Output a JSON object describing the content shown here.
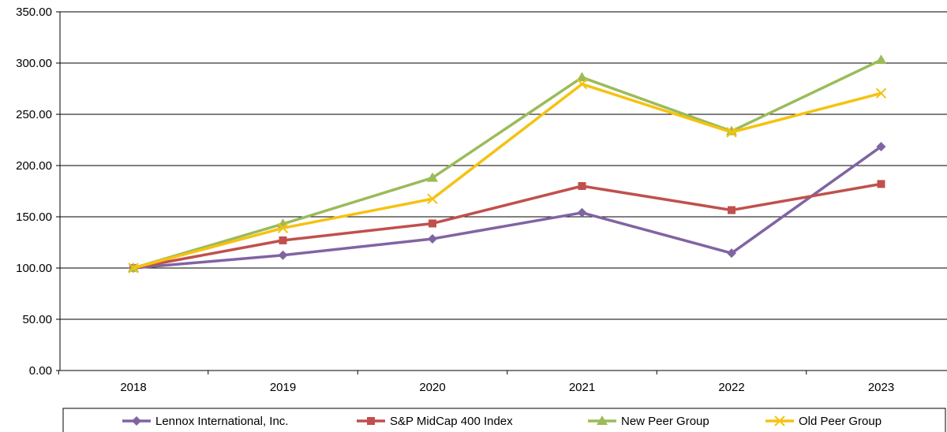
{
  "chart_data": {
    "type": "line",
    "title": "",
    "xlabel": "",
    "ylabel": "",
    "categories": [
      "2018",
      "2019",
      "2020",
      "2021",
      "2022",
      "2023"
    ],
    "ylim": [
      0,
      350
    ],
    "yticks": [
      "0.00",
      "50.00",
      "100.00",
      "150.00",
      "200.00",
      "250.00",
      "300.00",
      "350.00"
    ],
    "grid": true,
    "legend_position": "bottom",
    "series": [
      {
        "name": "Lennox International, Inc.",
        "values": [
          100,
          112.5,
          128.5,
          154,
          114.5,
          218.5
        ],
        "color": "#8064A2",
        "marker": "diamond"
      },
      {
        "name": "S&P MidCap 400 Index",
        "values": [
          100,
          127,
          143.5,
          180,
          156.5,
          182
        ],
        "color": "#C0504D",
        "marker": "square"
      },
      {
        "name": "New Peer Group",
        "values": [
          100,
          143,
          188,
          286,
          233.5,
          303
        ],
        "color": "#9BBB59",
        "marker": "triangle"
      },
      {
        "name": "Old Peer Group",
        "values": [
          100,
          139,
          167.5,
          279.5,
          232.5,
          270.5
        ],
        "color": "#F5C211",
        "marker": "x"
      }
    ]
  }
}
